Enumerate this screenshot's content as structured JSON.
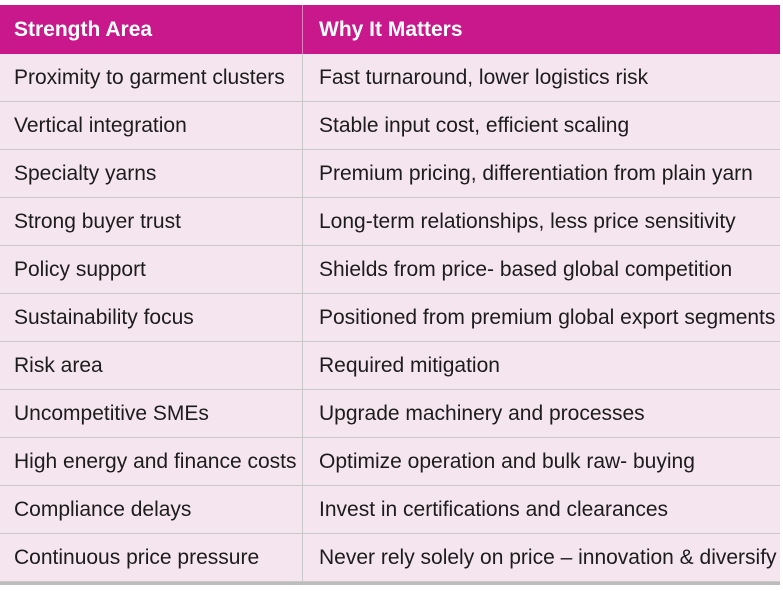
{
  "table": {
    "headers": [
      "Strength Area",
      "Why It Matters"
    ],
    "rows": [
      [
        "Proximity to garment clusters",
        "Fast turnaround, lower logistics risk"
      ],
      [
        "Vertical integration",
        "Stable input cost, efficient scaling"
      ],
      [
        "Specialty yarns",
        "Premium pricing, differentiation from plain yarn"
      ],
      [
        "Strong buyer trust",
        "Long-term relationships, less price sensitivity"
      ],
      [
        "Policy support",
        "Shields from price- based global competition"
      ],
      [
        "Sustainability focus",
        "Positioned from premium global export segments"
      ],
      [
        "Risk area",
        "Required mitigation"
      ],
      [
        "Uncompetitive SMEs",
        "Upgrade machinery and processes"
      ],
      [
        "High energy and finance costs",
        "Optimize operation and bulk raw- buying"
      ],
      [
        "Compliance delays",
        "Invest in certifications and clearances"
      ],
      [
        "Continuous price pressure",
        "Never rely solely on price – innovation & diversify"
      ]
    ],
    "colors": {
      "header_bg": "#c8188b",
      "row_bg": "#f5e5ef",
      "header_text": "#ffffff"
    }
  }
}
